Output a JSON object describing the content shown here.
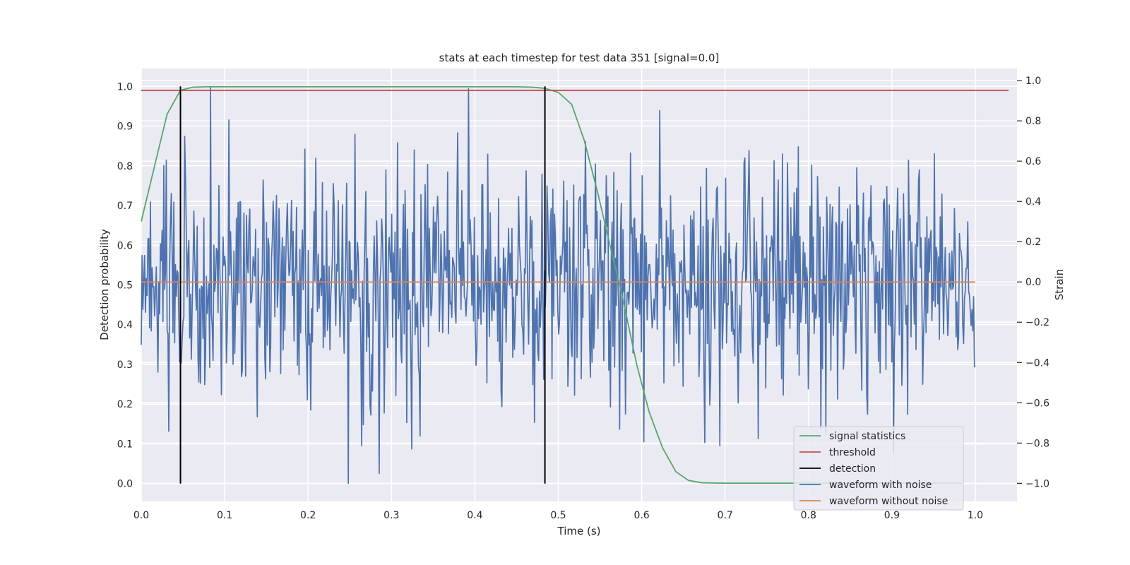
{
  "chart_data": {
    "type": "line",
    "title": "stats at each timestep for test data 351 [signal=0.0]",
    "xlabel": "Time (s)",
    "ylabel": "Detection probability",
    "y2label": "Strain",
    "xlim": [
      0.0,
      1.05
    ],
    "ylim": [
      -0.045,
      1.045
    ],
    "y2lim": [
      -1.09,
      1.06
    ],
    "grid": true,
    "legend_position": "lower-right",
    "x_ticks": [
      "0.0",
      "0.1",
      "0.2",
      "0.3",
      "0.4",
      "0.5",
      "0.6",
      "0.7",
      "0.8",
      "0.9",
      "1.0"
    ],
    "y_ticks": [
      "0.0",
      "0.1",
      "0.2",
      "0.3",
      "0.4",
      "0.5",
      "0.6",
      "0.7",
      "0.8",
      "0.9",
      "1.0"
    ],
    "y2_ticks": [
      "−1.0",
      "−0.8",
      "−0.6",
      "−0.4",
      "−0.2",
      "0.0",
      "0.2",
      "0.4",
      "0.6",
      "0.8",
      "1.0"
    ],
    "series": [
      {
        "name": "signal statistics",
        "color": "#55a868",
        "axis": "left",
        "x": [
          0.0,
          0.016,
          0.031,
          0.047,
          0.062,
          0.078,
          0.094,
          0.2,
          0.3,
          0.4,
          0.45,
          0.469,
          0.484,
          0.5,
          0.516,
          0.531,
          0.547,
          0.562,
          0.578,
          0.594,
          0.609,
          0.625,
          0.641,
          0.656,
          0.672,
          0.7,
          0.8,
          0.9,
          0.984
        ],
        "y": [
          0.66,
          0.8,
          0.93,
          0.99,
          0.998,
          0.999,
          0.999,
          0.999,
          0.999,
          0.999,
          0.999,
          0.998,
          0.995,
          0.985,
          0.955,
          0.865,
          0.735,
          0.6,
          0.46,
          0.3,
          0.18,
          0.09,
          0.03,
          0.008,
          0.002,
          0.001,
          0.001,
          0.001,
          0.001
        ]
      },
      {
        "name": "threshold",
        "color": "#c44e52",
        "axis": "left",
        "x": [
          0.0,
          1.04
        ],
        "y": [
          0.99,
          0.99
        ]
      },
      {
        "name": "detection",
        "color": "#000000",
        "axis": "left",
        "segments": [
          {
            "x": 0.047,
            "y": [
              0.0,
              1.0
            ]
          },
          {
            "x": 0.484,
            "y": [
              0.0,
              1.0
            ]
          }
        ]
      },
      {
        "name": "waveform with noise",
        "color": "#4c72b0",
        "axis": "right",
        "x_start": 0.0,
        "x_end": 1.0,
        "seed": 351,
        "sample_count": 1000,
        "std": 0.3,
        "min": -1.0,
        "max": 0.97
      },
      {
        "name": "waveform without noise",
        "color": "#dd8452",
        "axis": "right",
        "x": [
          0.0,
          1.0
        ],
        "y": [
          0.0,
          0.0
        ]
      }
    ]
  }
}
